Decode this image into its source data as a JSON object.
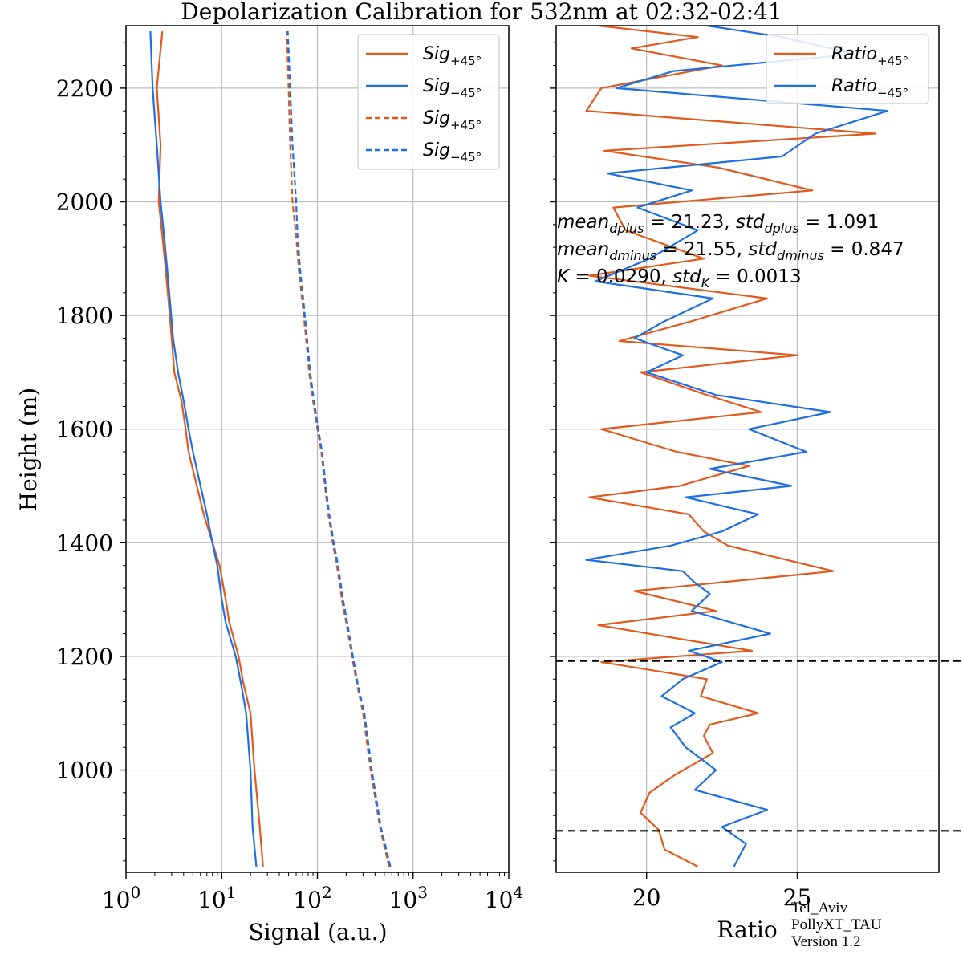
{
  "title": "Depolarization Calibration for 532nm at 02:32-02:41",
  "watermark": {
    "line1": "Tel_Aviv",
    "line2": "PollyXT_TAU",
    "line3": "Version 1.2"
  },
  "colors": {
    "plus": "#e05a1e",
    "minus": "#1f6fe0",
    "grid": "#bbbbbb",
    "calibration_lines": "#000000"
  },
  "chart_data": [
    {
      "type": "line",
      "panel": "signal",
      "xlabel": "Signal (a.u.)",
      "ylabel": "Height (m)",
      "xscale": "log",
      "xlim": [
        1,
        10000
      ],
      "ylim": [
        820,
        2310
      ],
      "xticks": [
        {
          "base": "10",
          "exp": "0"
        },
        {
          "base": "10",
          "exp": "1"
        },
        {
          "base": "10",
          "exp": "2"
        },
        {
          "base": "10",
          "exp": "3"
        },
        {
          "base": "10",
          "exp": "4"
        }
      ],
      "yticks": [
        "1000",
        "1200",
        "1400",
        "1600",
        "1800",
        "2000",
        "2200"
      ],
      "grid": true,
      "legend_position": "top-right",
      "series": [
        {
          "name": "Sig",
          "sub": "+45°",
          "style": "solid",
          "color": "#e05a1e",
          "x": [
            27,
            25,
            22,
            20,
            17,
            15,
            12,
            11,
            9.5,
            8,
            6.5,
            5.5,
            4.5,
            4.2,
            3.8,
            3.2,
            3,
            2.8,
            2.6,
            2.4,
            2.2,
            2.3,
            2.1,
            2.4
          ],
          "y": [
            830,
            900,
            1000,
            1100,
            1150,
            1200,
            1260,
            1300,
            1360,
            1400,
            1450,
            1500,
            1560,
            1600,
            1650,
            1700,
            1760,
            1820,
            1880,
            1940,
            2000,
            2100,
            2200,
            2300
          ]
        },
        {
          "name": "Sig",
          "sub": "−45°",
          "style": "solid",
          "color": "#1f6fe0",
          "x": [
            23,
            21,
            20,
            18,
            16,
            14,
            11,
            10,
            9,
            8,
            7,
            6,
            5,
            4.5,
            4,
            3.5,
            3.1,
            2.9,
            2.7,
            2.5,
            2.3,
            2.1,
            1.9,
            1.8
          ],
          "y": [
            830,
            900,
            1000,
            1100,
            1150,
            1200,
            1260,
            1300,
            1360,
            1400,
            1450,
            1500,
            1560,
            1600,
            1650,
            1700,
            1760,
            1820,
            1880,
            1940,
            2000,
            2100,
            2200,
            2300
          ]
        },
        {
          "name": "Sig",
          "sub": "+45°",
          "style": "dashed",
          "color": "#e05a1e",
          "x": [
            560,
            450,
            360,
            300,
            260,
            230,
            200,
            180,
            160,
            145,
            130,
            120,
            110,
            100,
            90,
            82,
            76,
            70,
            64,
            60,
            55,
            52,
            50,
            48
          ],
          "y": [
            830,
            900,
            1000,
            1100,
            1150,
            1200,
            1260,
            1300,
            1360,
            1400,
            1450,
            1500,
            1560,
            1600,
            1650,
            1700,
            1760,
            1820,
            1880,
            1940,
            2000,
            2100,
            2200,
            2300
          ]
        },
        {
          "name": "Sig",
          "sub": "−45°",
          "style": "dashed",
          "color": "#1f6fe0",
          "x": [
            580,
            460,
            370,
            310,
            265,
            235,
            205,
            185,
            165,
            148,
            133,
            122,
            112,
            102,
            92,
            84,
            78,
            72,
            66,
            62,
            60,
            55,
            52,
            49
          ],
          "y": [
            830,
            900,
            1000,
            1100,
            1150,
            1200,
            1260,
            1300,
            1360,
            1400,
            1450,
            1500,
            1560,
            1600,
            1650,
            1700,
            1760,
            1820,
            1880,
            1940,
            2000,
            2100,
            2200,
            2300
          ]
        }
      ]
    },
    {
      "type": "line",
      "panel": "ratio",
      "xlabel": "Ratio",
      "xlim": [
        17,
        29.7
      ],
      "ylim": [
        820,
        2310
      ],
      "xticks": [
        "20",
        "25"
      ],
      "grid": true,
      "legend_position": "top-right",
      "calibration_lines": [
        893,
        1192
      ],
      "annotations": [
        {
          "a": "mean",
          "as": "dplus",
          "b": "= 21.23, ",
          "c": "std",
          "cs": "dplus",
          "d": "= 1.091"
        },
        {
          "a": "mean",
          "as": "dminus",
          "b": "= 21.55, ",
          "c": "std",
          "cs": "dminus",
          "d": "= 0.847"
        },
        {
          "a": "K",
          "as": "",
          "b": "= 0.0290, ",
          "c": "std",
          "cs": "K",
          "d": "= 0.0013"
        }
      ],
      "series": [
        {
          "name": "Ratio",
          "sub": "+45°",
          "color": "#e05a1e",
          "x": [
            21.7,
            20.6,
            20.4,
            19.8,
            20.1,
            20.9,
            22.2,
            21.9,
            22.1,
            23.7,
            21.8,
            22.0,
            18.5,
            23.5,
            21.2,
            18.4,
            22.3,
            19.6,
            26.2,
            22.7,
            21.9,
            21.4,
            18.1,
            21.1,
            23.4,
            21.0,
            18.5,
            23.8,
            22.0,
            19.8,
            25.0,
            19.1,
            21.5,
            24.0,
            18.1,
            21.9,
            19.3,
            18.9,
            25.5,
            22.4,
            18.6,
            27.6,
            18.0,
            18.5,
            22.5,
            19.5,
            21.7,
            18.4,
            20.5,
            22.1
          ],
          "y": [
            830,
            860,
            895,
            925,
            960,
            990,
            1030,
            1060,
            1080,
            1100,
            1130,
            1160,
            1190,
            1210,
            1230,
            1255,
            1280,
            1315,
            1350,
            1395,
            1420,
            1450,
            1480,
            1500,
            1535,
            1560,
            1600,
            1630,
            1660,
            1700,
            1730,
            1755,
            1790,
            1830,
            1870,
            1900,
            1950,
            1990,
            2020,
            2060,
            2090,
            2120,
            2160,
            2200,
            2240,
            2270,
            2290,
            2310,
            2330,
            2350
          ]
        },
        {
          "name": "Ratio",
          "sub": "−45°",
          "color": "#1f6fe0",
          "x": [
            22.9,
            23.3,
            22.5,
            24.0,
            21.6,
            22.3,
            21.3,
            20.8,
            21.6,
            20.5,
            21.2,
            22.5,
            21.4,
            24.1,
            21.5,
            22.1,
            21.6,
            21.2,
            18.0,
            20.8,
            22.5,
            23.7,
            21.3,
            24.8,
            22.1,
            25.3,
            23.4,
            26.1,
            22.3,
            20.0,
            21.2,
            19.6,
            20.6,
            22.2,
            18.3,
            20.1,
            21.7,
            19.7,
            21.5,
            18.7,
            24.5,
            25.6,
            28.0,
            19.0,
            20.9,
            26.9,
            24.5,
            22.0,
            23.8,
            21.7,
            20.5,
            22.6
          ],
          "y": [
            830,
            870,
            900,
            930,
            965,
            1000,
            1040,
            1075,
            1100,
            1130,
            1160,
            1190,
            1210,
            1240,
            1280,
            1310,
            1330,
            1350,
            1370,
            1395,
            1420,
            1450,
            1480,
            1500,
            1530,
            1560,
            1600,
            1630,
            1660,
            1700,
            1730,
            1760,
            1790,
            1830,
            1860,
            1900,
            1950,
            1990,
            2020,
            2050,
            2080,
            2120,
            2160,
            2200,
            2230,
            2260,
            2290,
            2310,
            2330,
            2345,
            2355,
            2360
          ]
        }
      ]
    }
  ]
}
